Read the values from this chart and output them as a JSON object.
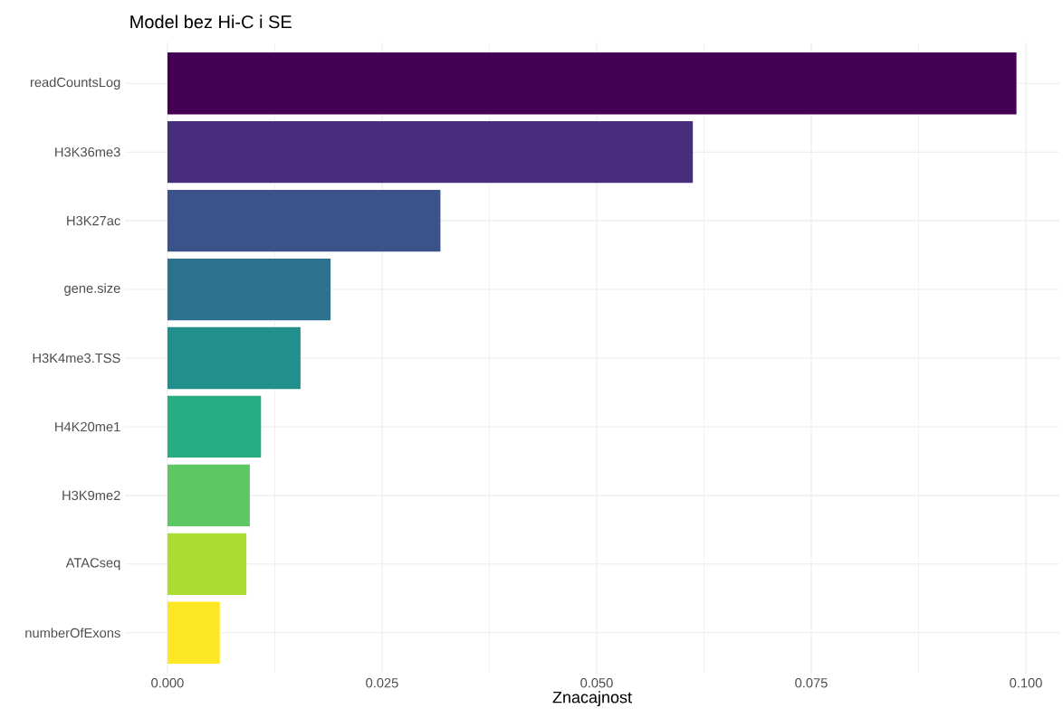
{
  "chart_data": {
    "type": "bar",
    "orientation": "horizontal",
    "title": "Model bez Hi-C i SE",
    "xlabel": "Znacajnost",
    "categories": [
      "readCountsLog",
      "H3K36me3",
      "H3K27ac",
      "gene.size",
      "H3K4me3.TSS",
      "H4K20me1",
      "H3K9me2",
      "ATACseq",
      "numberOfExons"
    ],
    "values": [
      0.0989,
      0.0612,
      0.0318,
      0.019,
      0.0155,
      0.0109,
      0.0096,
      0.0092,
      0.0061
    ],
    "colors": [
      "#440154",
      "#472d7b",
      "#3b528b",
      "#2c728e",
      "#21908c",
      "#27ad81",
      "#5dc863",
      "#aadc32",
      "#fde725"
    ],
    "xlim": [
      -0.00495,
      0.1039
    ],
    "xticks": [
      {
        "value": 0,
        "label": "0.000"
      },
      {
        "value": 0.025,
        "label": "0.025"
      },
      {
        "value": 0.05,
        "label": "0.050"
      },
      {
        "value": 0.075,
        "label": "0.075"
      },
      {
        "value": 0.1,
        "label": "0.100"
      }
    ],
    "grid": true
  }
}
